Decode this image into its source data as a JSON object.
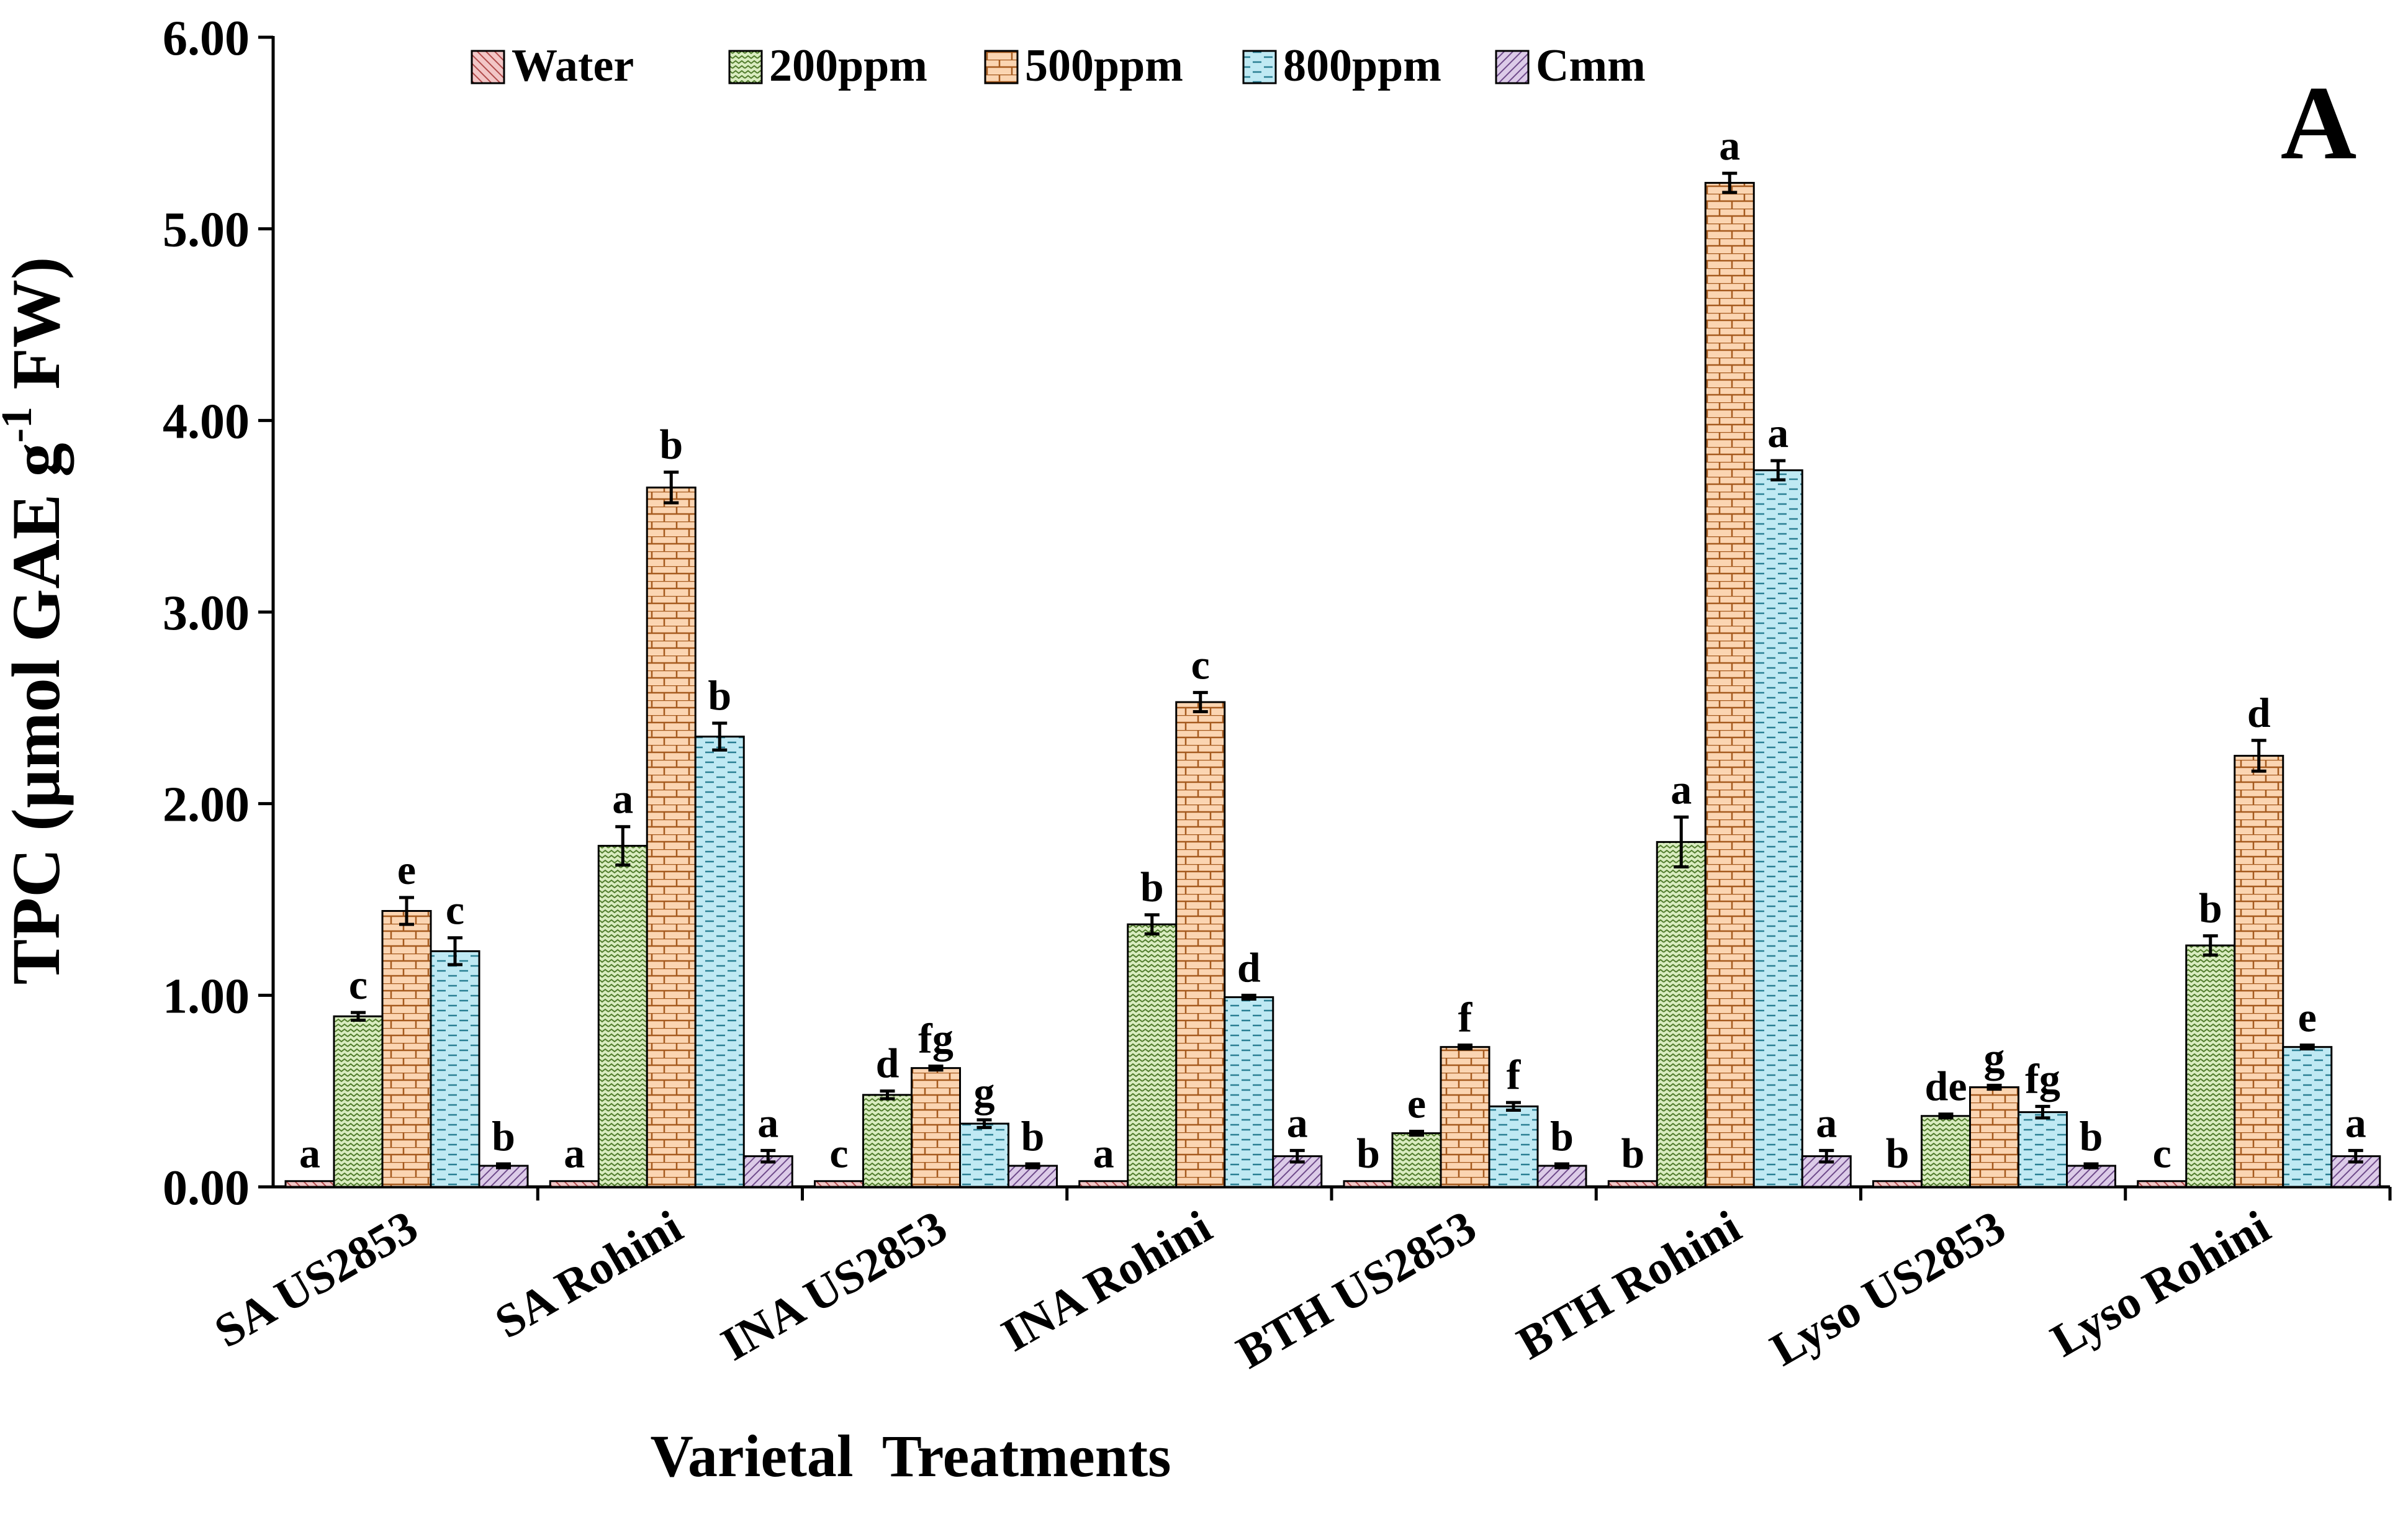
{
  "chart_data": {
    "type": "bar",
    "panel_label": "A",
    "title": "",
    "xlabel": "Varietal  Treatments",
    "ylabel": {
      "pre": "TPC (µmol GAE g",
      "sup": "-1",
      "post": " FW)"
    },
    "ylim": [
      0,
      6
    ],
    "yticks": [
      {
        "value": 0,
        "label": "0.00"
      },
      {
        "value": 1,
        "label": "1.00"
      },
      {
        "value": 2,
        "label": "2.00"
      },
      {
        "value": 3,
        "label": "3.00"
      },
      {
        "value": 4,
        "label": "4.00"
      },
      {
        "value": 5,
        "label": "5.00"
      },
      {
        "value": 6,
        "label": "6.00"
      }
    ],
    "categories": [
      "SA US2853",
      "SA Rohini",
      "INA US2853",
      "INA Rohini",
      "BTH US2853",
      "BTH Rohini",
      "Lyso US2853",
      "Lyso Rohini"
    ],
    "legend_position": "top",
    "series": [
      {
        "name": "Water",
        "color": "#f2c6c6",
        "pattern": "diagonal-down",
        "values": [
          0.03,
          0.03,
          0.03,
          0.03,
          0.03,
          0.03,
          0.03,
          0.03
        ],
        "errors": [
          0,
          0,
          0,
          0,
          0,
          0,
          0,
          0
        ],
        "letters": [
          "a",
          "a",
          "c",
          "a",
          "b",
          "b",
          "b",
          "c"
        ]
      },
      {
        "name": "200ppm",
        "color": "#d9ecc0",
        "pattern": "zigzag",
        "values": [
          0.89,
          1.78,
          0.48,
          1.37,
          0.28,
          1.8,
          0.37,
          1.26
        ],
        "errors": [
          0.02,
          0.1,
          0.02,
          0.05,
          0.01,
          0.13,
          0.01,
          0.05
        ],
        "letters": [
          "c",
          "a",
          "d",
          "b",
          "e",
          "a",
          "de",
          "b"
        ]
      },
      {
        "name": "500ppm",
        "color": "#fbd5b2",
        "pattern": "brick",
        "values": [
          1.44,
          3.65,
          0.62,
          2.53,
          0.73,
          5.24,
          0.52,
          2.25
        ],
        "errors": [
          0.07,
          0.08,
          0.01,
          0.05,
          0.01,
          0.05,
          0.01,
          0.08
        ],
        "letters": [
          "e",
          "b",
          "fg",
          "c",
          "f",
          "a",
          "g",
          "d"
        ]
      },
      {
        "name": "800ppm",
        "color": "#bfe9f3",
        "pattern": "dashes",
        "values": [
          1.23,
          2.35,
          0.33,
          0.99,
          0.42,
          3.74,
          0.39,
          0.73
        ],
        "errors": [
          0.07,
          0.07,
          0.02,
          0.01,
          0.02,
          0.05,
          0.03,
          0.01
        ],
        "letters": [
          "c",
          "b",
          "g",
          "d",
          "f",
          "a",
          "fg",
          "e"
        ]
      },
      {
        "name": "Cmm",
        "color": "#dccbe8",
        "pattern": "diagonal-up",
        "values": [
          0.11,
          0.16,
          0.11,
          0.16,
          0.11,
          0.16,
          0.11,
          0.16
        ],
        "errors": [
          0.01,
          0.03,
          0.01,
          0.03,
          0.01,
          0.03,
          0.01,
          0.03
        ],
        "letters": [
          "b",
          "a",
          "b",
          "a",
          "b",
          "a",
          "b",
          "a"
        ]
      }
    ]
  }
}
